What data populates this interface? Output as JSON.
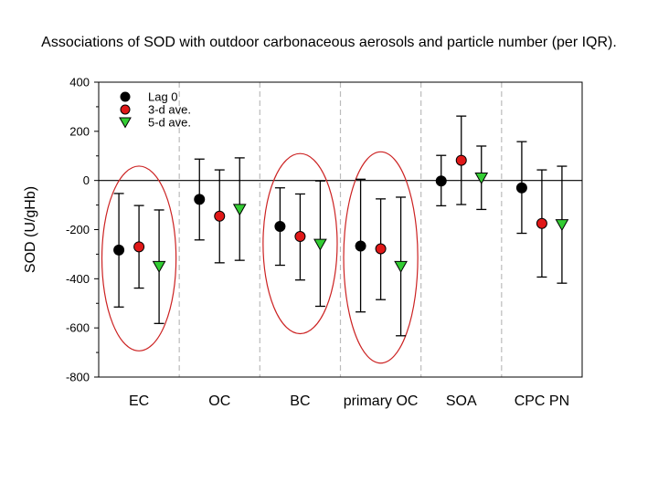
{
  "chart_data": {
    "type": "scatter",
    "title": "Associations of SOD with outdoor carbonaceous aerosols and particle number (per IQR).",
    "xlabel": "",
    "ylabel": "SOD (U/gHb)",
    "ylim": [
      -800,
      400
    ],
    "yticks": [
      400,
      200,
      0,
      -200,
      -400,
      -600,
      -800
    ],
    "categories": [
      "EC",
      "OC",
      "BC",
      "primary OC",
      "SOA",
      "CPC PN"
    ],
    "grid": false,
    "legend_position": "top-left",
    "series": [
      {
        "name": "Lag 0",
        "marker": "circle",
        "color": "#000000",
        "values": [
          -283,
          -77,
          -187,
          -267,
          -2,
          -30
        ],
        "lower": [
          -515,
          -242,
          -345,
          -535,
          -103,
          -215
        ],
        "upper": [
          -53,
          87,
          -30,
          5,
          102,
          158
        ]
      },
      {
        "name": "3-d ave.",
        "marker": "circle",
        "color": "#e01818",
        "values": [
          -270,
          -145,
          -228,
          -278,
          82,
          -175
        ],
        "lower": [
          -438,
          -335,
          -405,
          -485,
          -98,
          -393
        ],
        "upper": [
          -102,
          43,
          -55,
          -75,
          262,
          43
        ]
      },
      {
        "name": "5-d ave.",
        "marker": "triangle-down",
        "color": "#33cc33",
        "values": [
          -350,
          -118,
          -260,
          -350,
          10,
          -180
        ],
        "lower": [
          -582,
          -325,
          -512,
          -632,
          -118,
          -418
        ],
        "upper": [
          -120,
          92,
          -2,
          -68,
          140,
          58
        ]
      }
    ],
    "annotations": [
      {
        "type": "ellipse",
        "category": "EC",
        "color": "#cc2222"
      },
      {
        "type": "ellipse",
        "category": "BC",
        "color": "#cc2222"
      },
      {
        "type": "ellipse",
        "category": "primary OC",
        "color": "#cc2222"
      }
    ],
    "separator_color": "#bbbbbb",
    "zero_line": true
  }
}
